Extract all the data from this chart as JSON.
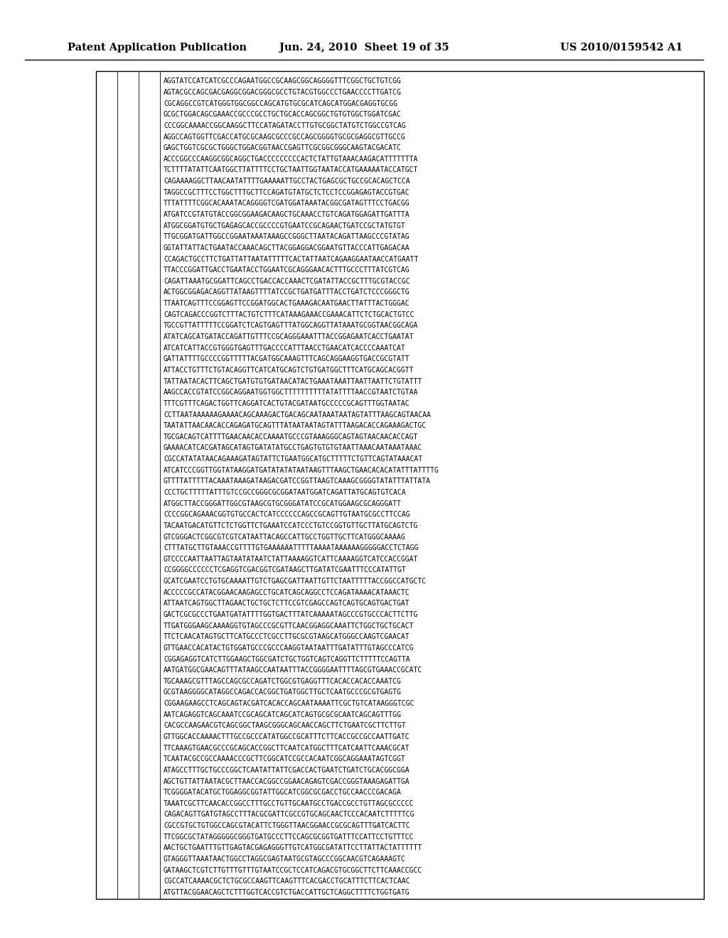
{
  "header_left": "Patent Application Publication",
  "header_center": "Jun. 24, 2010  Sheet 19 of 35",
  "header_right": "US 2010/0159542 A1",
  "background_color": "#ffffff",
  "text_color": "#000000",
  "header_fontsize": 10.5,
  "seq_fontsize": 7.0,
  "seq_lines": [
    "AGGTATCCATCATCGCCCAGAATGGCCGCAAGCGGCAGGGGTTTCGGCTGCTGTCGG",
    "AGTACGCCAGCGACGAGGCGGACGGGCGCCTGTACGTGGCCCTGAACCCCTTGATCG",
    "CGCAGGCCGTCATGGGTGGCGGCCAGCATGTGCGCATCAGCATGGACGAGGTGCGG",
    "GCGCTGGACAGCGAAACCGCCCGCCTGCTGCACCAGCGGCTGTGTGGCTGGATCGAC",
    "CCCGGCAAAACCGGCAAGGCTTCCATAGATACCTTGTGCGGCTATGTCTGGCCGTCAG",
    "AGGCCAGTGGTTCGACCATGCGCAAGCGCCCGCCAGCGGGGTGCGCGAGGCGTTGCCG",
    "GAGCTGGTCGCGCTGGGCTGGACGGTAACCGAGTTCGCGGCGGGCAAGTACGACATC",
    "ACCCGGCCCAAGGCGGCAGGCTGACCCCCCCCCACTCTATTGTAAACAAGACATTTTTTTA",
    "TCTTTTATATTCAATGGCTTATTTTCCTGCTAATTGGTAATACCATGAAAAATACCATGCT",
    "CAGAAAAGGCTTAACAATATTTTGAAAAATTGCCTACTGAGCGCTGCCGCACAGCTCCA",
    "TAGGCCGCTTTCCTGGCTTTGCTTCCAGATGTATGCTCTCCTCCGGAGAGTACCGTGAC",
    "TTTATTTTCGGCACAAATACAGGGGTCGATGGATAAATACGGCGATAGTTTCCTGACGG",
    "ATGATCCGTATGTACCGGCGGAAGACAAGCTGCAAACCTGTCAGATGGAGATTGATTTA",
    "ATGGCGGATGTGCTGAGAGCACCGCCCCGTGAATCCGCAGAACTGATCCGCTATGTGT",
    "TTGCGGATGATTGGCCGGAATAAATAAAGCCGGGCTTAATACAGATTAAGCCCGTATAG",
    "GGTATTATTACTGAATACCAAACAGCTTACGGAGGACGGAATGTTACCCATTGAGACAA",
    "CCAGACTGCCTTCTGATTATTAATATTTTTCACTATTAATCAGAAGGAATAACCATGAATT",
    "TTACCCGGATTGACCTGAATACCTGGAATCGCAGGGAACACTTTGCCCTTTATCGTCAG",
    "CAGATTAAATGCGGATTCAGCCTGACCACCAAACTCGATATTACCGCTTTGCGTACCGC",
    "ACTGGCGGAGACAGGTTATAAGTTTTATCCGCTGATGATTTACCTGATCTCCCGGGCTG",
    "TTAATCAGTTTCCGGAGTTCCGGATGGCACTGAAAGACAATGAACTTATTTACTGGGAC",
    "CAGTCAGACCCGGTCTTTACTGTCTTTCATAAAGAAACCGAAACATTCTCTGCACTGTCC",
    "TGCCGTTATTTTTCCGGATCTCAGTGAGTTTATGGCAGGTTATAAATGCGGTAACGGCAGA",
    "ATATCAGCATGATACCAGATTGTTTCCGCAGGGAAATTTACCGGAGAATCACCTGAATAT",
    "ATCATCATTACCGTGGGTGAGTTTGACCCCATTTAACCTGAACATCACCCCAAATCAT",
    "GATTATTTTGCCCCGGTTTTTACGATGGCAAAGTTTCAGCAGGAAGGTGACCGCGTATT",
    "ATTACCTGTTTCTGTACAGGTTCATCATGCAGTCTGTGATGGCTTTCATGCAGCACGGTT",
    "TATTAATACACTTCAGCTGATGTGTGATAACATACTGAAATAAATTAATTAATTCTGTATTT",
    "AAGCCACCGTATCCGGCAGGAATGGTGGCTTTTTTTTTTATATTTTAACCGTAATCTGTAA",
    "TTTCGTTTCAGACTGGTTCAGGATCACTGTACGATAATGCCCCCGCAGTTTGGTAATAC",
    "CCTTAATAAAAAAGAAAACAGCAAAGACTGACAGCAATAAATAATAGTATTTAAGCAGTAACAA",
    "TAATATTAACAACACCAGAGATGCAGTTTATAATAATAGTATTTAAGACACCAGAAAGACTGC",
    "TGCGACAGTCATTTTGAACAACACCAAAATGCCCGTAAAGGGCAGTAGTAACAACACCAGT",
    "GAAAACATCACGATAGCATAGTGATATATGCCTGAGTGTGTGTAATTAAACAATAAATAAAC",
    "CGCCATATATAACAGAAAGATAGTATTCTGAATGGCATGCTTTTTCTGTTCAGTATAAACAT",
    "ATCATCCCGGTTGGTATAAGGATGATATATATAATAAGTTTAAGCTGAACACACATATTTATTTTG",
    "GTTTTATTTTTACAAATAAAGATAAGACGATCCGGTTAAGTCAAAGCGGGGTATATTTATTATA",
    "CCCTGCTTTTTATTTGTCCGCCGGGCGCGGATAATGGATCAGATTATGCAGTGTCACA",
    "ATGGCTTACCGGGATTGGCGTAAGCGTGCGGGATATCCGCATGGAAGCGCAGGGATT",
    "CCCCGGCAGAAACGGTGTGCCACTCATCCCCCCAGCCGCAGTTGTAATGCGCCTTCCAG",
    "TACAATGACATGTTCTCTGGTTCTGAAATCCATCCCTGTCCGGTGTTGCTTATGCAGTCTG",
    "GTCGGGACTCGGCGTCGTCATAATTACAGCCATTGCCTGGTTGCTTCATGGGCAAAAG",
    "CTTTATGCTTGTAAACCGTTTTGTGAAAAAATTTTTAAAATAAAAAAGGGGGACCTCTAGG",
    "GTCCCCAATTAATTAGTAATATAATCTATTAAAAGGTCATTCAAAAGGTCATCCACCGGAT",
    "CCGGGGCCCCCCTCGAGGTCGACGGTCGATAAGCTTGATATCGAATTTCCCATATTGT",
    "GCATCGAATCCTGTGCAAAATTGTCTGAGCGATTAATTGTTCTAATTTTTACCGGCCATGCTC",
    "ACCCCCGCCATACGGAACAAGAGCCTGCATCAGCAGGCCTCCAGATAAAACATAAACTC",
    "ATTAATCAGTGGCTTAGAACTGCTGCTCTTCCGTCGAGCCAGTCAGTGCAGTGACTGAT",
    "GACTCGCGCCCTGAATGATATTTTGGTGACTTTATCAAAAATAGCCCGTGCCCACTTCTTG",
    "TTGATGGGAAGCAAAAGGTGTAGCCCGCGTTCAACGGAGGCAAATTCTGGCTGCTGCACT",
    "TTCTCAACATAGTGCTTCATGCCCTCGCCTTGCGCGTAAGCATGGGCCAAGTCGAACAT",
    "GTTGAACCACATACTGTGGATGCCCGCCCAAGGTAATAATTTGATATTTGTAGCCCATCG",
    "CGGAGAGGTCATCTTGGAAGCTGGCGATCTGCTGGTCAGTCAGGTTCTTTTTCCAGTTA",
    "AATGATGGCGAACAGTTTATAAGCCAATAATTTACCGGGGAATTTTAGCGTGAAACCGCATC",
    "TGCAAAGCGTTTAGCCAGCGCCAGATCTGGCGTGAGGTTTCACACCACACCAAATCG",
    "GCGTAAGGGGCATAGGCCAGACCACGGCTGATGGCTTGCTCAATGCCCGCGTGAGTG",
    "CGGAAGAAGCCTCAGCAGTACGATCACACCAGCAATAAAATTCGCTGTCATAAGGGTCGC",
    "AATCAGAGGTCAGCAAATCCGCAGCATCAGCATCAGTGCGCGCAATCAGCAGTTTGG",
    "CACGCCAAGAACGTCAGCGGCTAAGCGGGCAGCAACCAGCTTCTGAATCGCTTCTTGT",
    "GTTGGCACCAAAACTTTGCCGCCCATATGGCCGCATTTCTTCACCGCCGCCAATTGATC",
    "TTCAAAGTGAACGCCCGCAGCACCGGCTTCAATCATGGCTTTCATCAATTCAAACGCAT",
    "TCAATACGCCGCCAAAACCCGCTTCGGCATCCGCCACAATCGGCAGGAAATAGTCGGT",
    "ATAGCCTTTGCTGCCCGGCTCAATATTATTCGACCACTGAATCTGATCTGCACGGCGGA",
    "AGCTGTTATTAATACGCTTAACCACGGCCGGAACAGAGTCGACCGGGTAAAGAGATTGA",
    "TCGGGGATACATGCTGGAGGCGGTATTGGCATCGGCGCGACCTGCCAACCCGACAGA",
    "TAAATCGCTTCAACACCGGCCTTTGCCTGTTGCAATGCCTGACCGCCTGTTAGCGCCCCC",
    "CAGACAGTTGATGTAGCCTTTACGCGATTCGCCGTGCAGCAACTCCCACAATCTTTTTCG",
    "CGCCGTGCTGTGGCCAGCGTACATTCTGGGTTAACGGAACCGCGCAGTTTGATCACTTC",
    "TTCGGCGCTATAGGGGGCGGGTGATGCCCTTCCAGCGCGGTGATTTCCATTCCTGTTTCC",
    "AACTGCTGAATTTGTTGAGTACGAGAGGGTTGTCATGGCGATATTCCTTATTACTATTTTTT",
    "GTAGGGTTAAATAACTGGCCTAGGCGAGTAATGCGTAGCCCGGCAACGTCAGAAAGTC",
    "GATAAGCTCGTCTTGTTTGTTTGTAATCCGCTCCATCAGACGTGCGGCTTCTTCAAACCGCC",
    "CGCCATCAAAACGCTCTGCGCCAAGTTCAAGTTTCACGACCTGCATTTCTTCACTCAAC",
    "ATGTTACGGAACAGCTCTTTGGTCACCGTCTGACCATTGCTCAGGCTTTTCTGGTGATG"
  ]
}
